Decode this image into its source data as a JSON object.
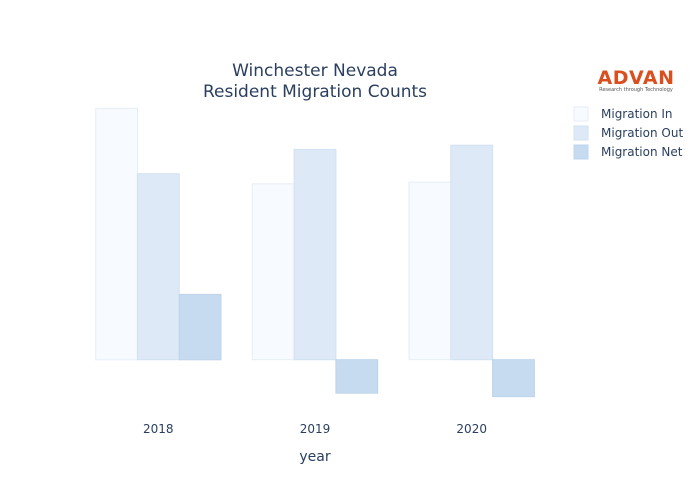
{
  "chart_data": {
    "type": "bar",
    "title_lines": [
      "Winchester Nevada",
      "Resident Migration Counts"
    ],
    "xlabel": "year",
    "ylabel": "",
    "categories": [
      "2018",
      "2019",
      "2020"
    ],
    "series": [
      {
        "name": "Migration In",
        "values": [
          1500,
          1050,
          1060
        ],
        "fill": "#f7fbff",
        "stroke": "#e6eef8"
      },
      {
        "name": "Migration Out",
        "values": [
          1110,
          1255,
          1280
        ],
        "fill": "#dde9f6",
        "stroke": "#d2e2f2"
      },
      {
        "name": "Migration Net",
        "values": [
          390,
          -200,
          -220
        ],
        "fill": "#c6dbef",
        "stroke": "#bcd4ec"
      }
    ],
    "ylim": [
      -300,
      1550
    ],
    "grid": false,
    "legend_position": "top-right",
    "y_tick_labels_visible": false
  },
  "logo": {
    "text": "ADVAN",
    "tagline": "Research through Technology"
  }
}
